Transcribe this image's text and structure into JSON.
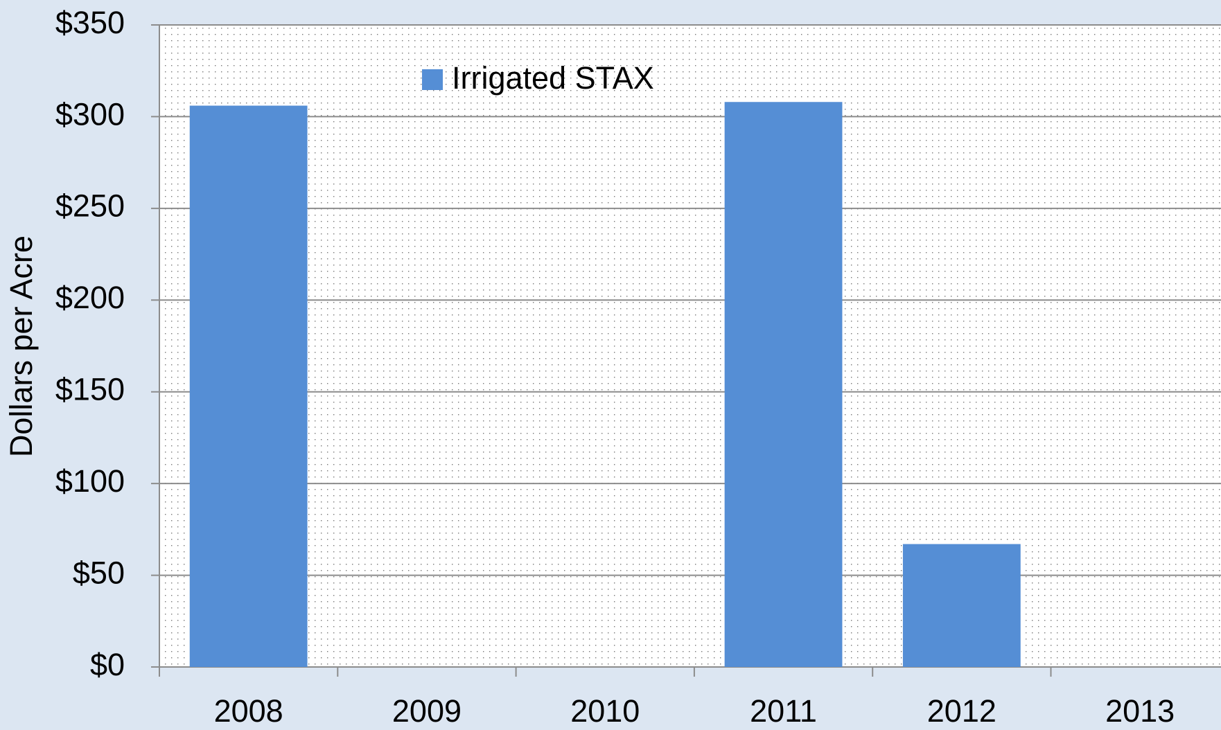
{
  "chart_data": {
    "type": "bar",
    "y_label": "Dollars per Acre",
    "categories": [
      "2008",
      "2009",
      "2010",
      "2011",
      "2012",
      "2013"
    ],
    "series": [
      {
        "name": "Irrigated STAX",
        "color": "#558ed5",
        "values": [
          306,
          0,
          0,
          308,
          67,
          0
        ]
      }
    ],
    "ylim": [
      0,
      350
    ],
    "yticks": [
      {
        "value": 0,
        "label": "$0"
      },
      {
        "value": 50,
        "label": "$50"
      },
      {
        "value": 100,
        "label": "$100"
      },
      {
        "value": 150,
        "label": "$150"
      },
      {
        "value": 200,
        "label": "$200"
      },
      {
        "value": 250,
        "label": "$250"
      },
      {
        "value": 300,
        "label": "$300"
      },
      {
        "value": 350,
        "label": "$350"
      }
    ],
    "grid": true
  }
}
